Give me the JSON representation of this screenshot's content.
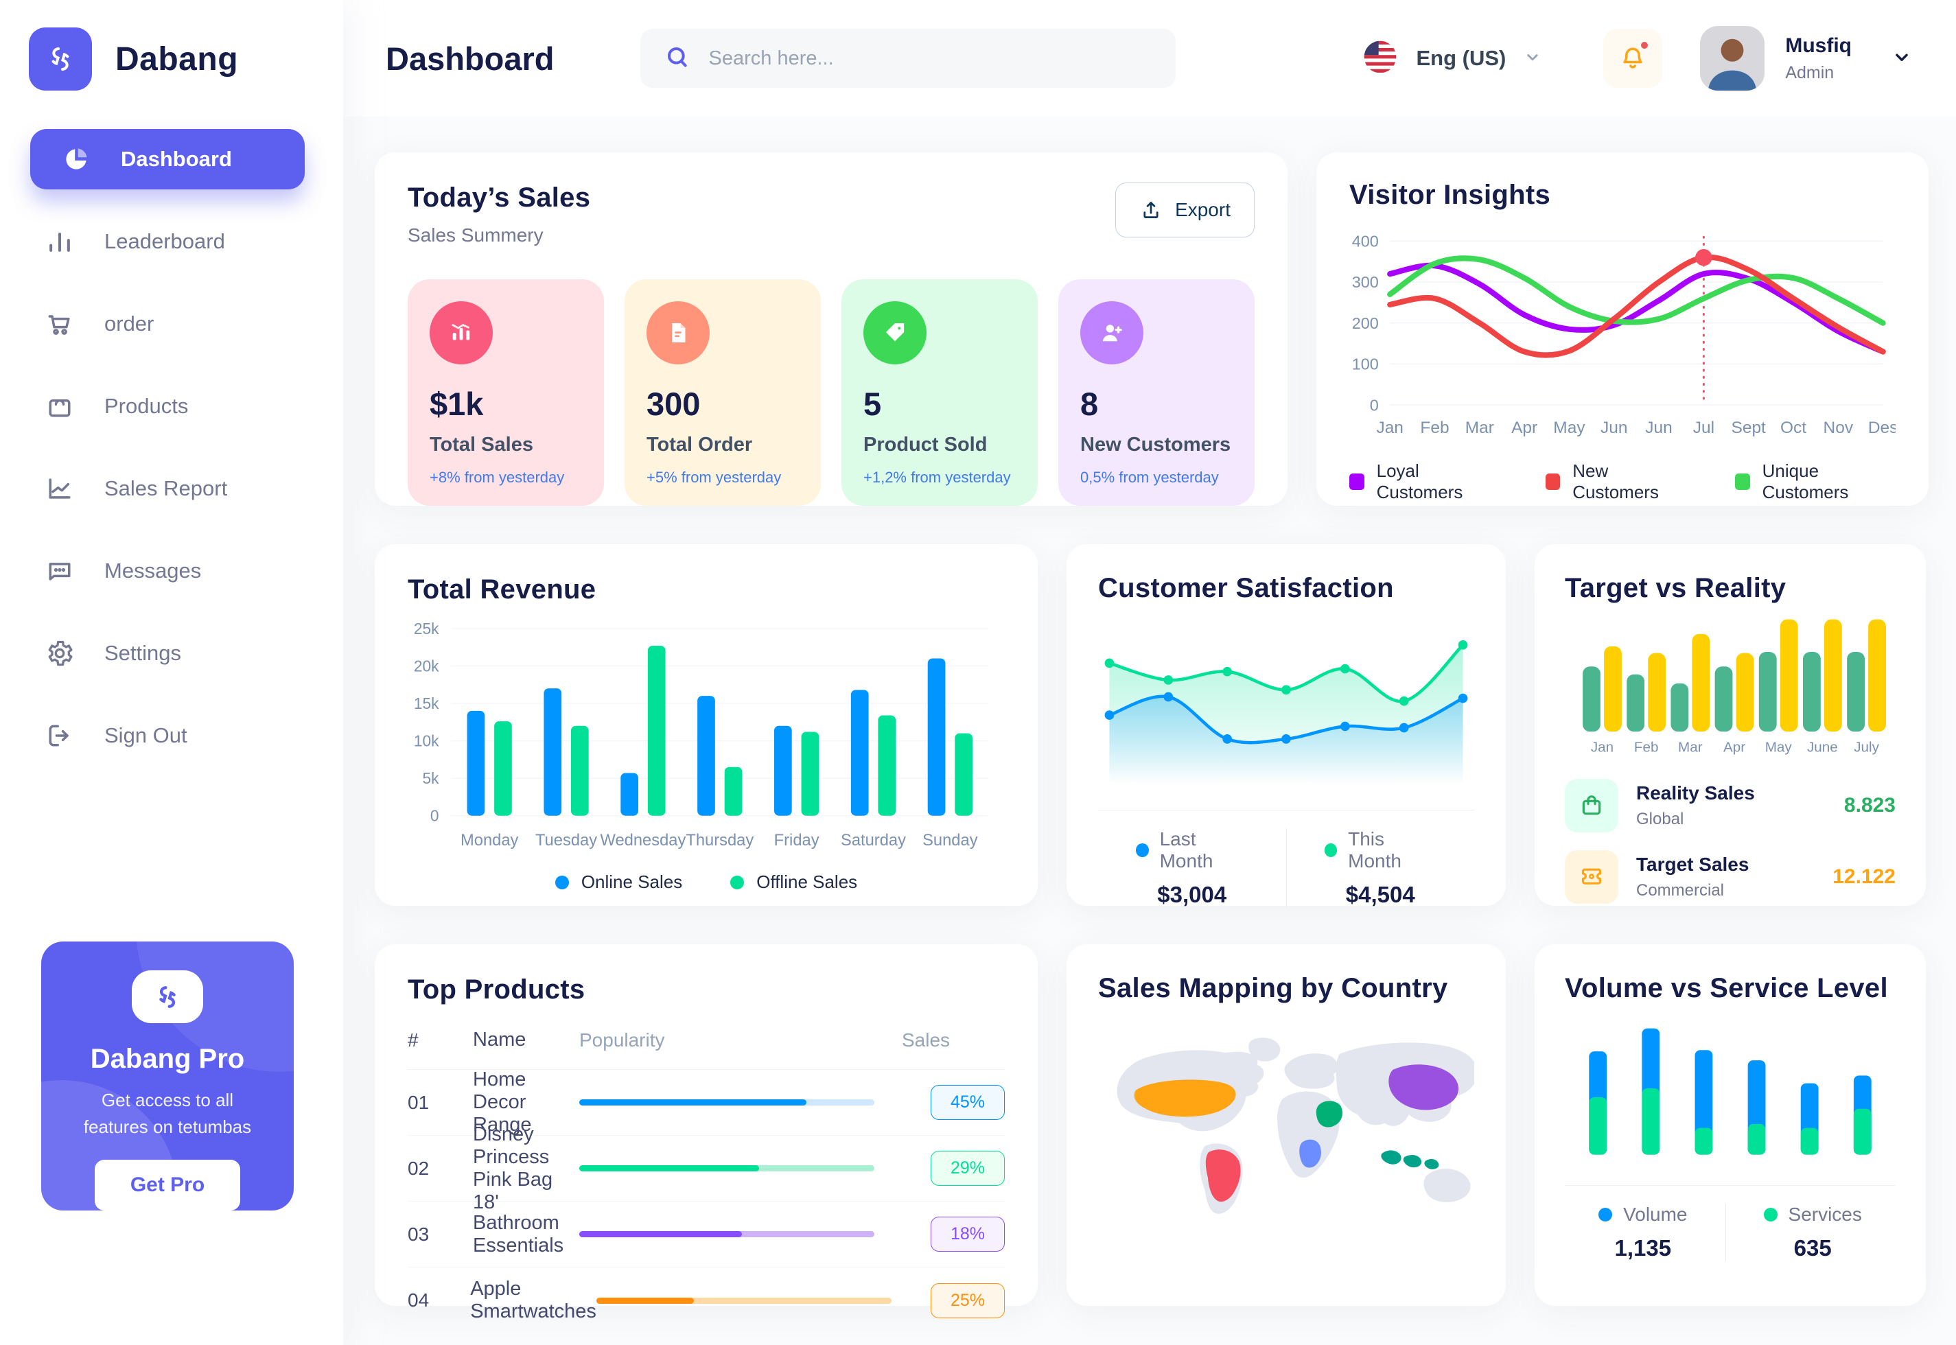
{
  "brand": {
    "name": "Dabang"
  },
  "header": {
    "title": "Dashboard",
    "search_placeholder": "Search here...",
    "language_label": "Eng (US)",
    "user_name": "Musfiq",
    "user_role": "Admin"
  },
  "sidebar": {
    "items": [
      {
        "label": "Dashboard",
        "icon": "pie-chart-icon",
        "active": true
      },
      {
        "label": "Leaderboard",
        "icon": "bar-chart-icon"
      },
      {
        "label": "order",
        "icon": "cart-icon"
      },
      {
        "label": "Products",
        "icon": "bag-icon"
      },
      {
        "label": "Sales Report",
        "icon": "line-chart-icon"
      },
      {
        "label": "Messages",
        "icon": "chat-icon"
      },
      {
        "label": "Settings",
        "icon": "gear-icon"
      },
      {
        "label": "Sign Out",
        "icon": "sign-out-icon"
      }
    ],
    "pro_card": {
      "title": "Dabang Pro",
      "line1": "Get access to all",
      "line2": "features on tetumbas",
      "cta": "Get Pro"
    }
  },
  "today_sales": {
    "title": "Today’s Sales",
    "subtitle": "Sales Summery",
    "export_label": "Export",
    "delta_color": "#4079ED",
    "cards": [
      {
        "value": "$1k",
        "label": "Total Sales",
        "delta": "+8% from yesterday",
        "bg": "#FFE2E5",
        "icon_bg": "#FA5A7D",
        "icon": "sales-chart-icon"
      },
      {
        "value": "300",
        "label": "Total Order",
        "delta": "+5% from yesterday",
        "bg": "#FFF4DE",
        "icon_bg": "#FF947A",
        "icon": "order-file-icon"
      },
      {
        "value": "5",
        "label": "Product Sold",
        "delta": "+1,2% from yesterday",
        "bg": "#DCFCE7",
        "icon_bg": "#3CD856",
        "icon": "tag-icon"
      },
      {
        "value": "8",
        "label": "New Customers",
        "delta": "0,5% from yesterday",
        "bg": "#F3E8FF",
        "icon_bg": "#BF83FF",
        "icon": "user-plus-icon"
      }
    ]
  },
  "chart_data": {
    "visitor_insights": {
      "type": "line",
      "title": "Visitor Insights",
      "x": [
        "Jan",
        "Feb",
        "Mar",
        "Apr",
        "May",
        "Jun",
        "Jun",
        "Jul",
        "Sept",
        "Oct",
        "Nov",
        "Des"
      ],
      "ylim": [
        0,
        400
      ],
      "yticks": [
        0,
        100,
        200,
        300,
        400
      ],
      "grid": true,
      "legend_position": "bottom",
      "series": [
        {
          "name": "Loyal Customers",
          "color": "#A700FF",
          "values": [
            320,
            340,
            295,
            220,
            185,
            195,
            255,
            320,
            308,
            250,
            180,
            130
          ]
        },
        {
          "name": "New Customers",
          "color": "#EF4444",
          "values": [
            245,
            260,
            200,
            130,
            132,
            210,
            300,
            360,
            330,
            260,
            190,
            130
          ]
        },
        {
          "name": "Unique Customers",
          "color": "#3CD856",
          "values": [
            270,
            345,
            355,
            310,
            240,
            205,
            210,
            260,
            305,
            310,
            260,
            200
          ]
        }
      ],
      "highlight": {
        "x": "Jul",
        "x_index": 7,
        "series": "New Customers",
        "value": 360
      }
    },
    "total_revenue": {
      "type": "bar",
      "title": "Total Revenue",
      "categories": [
        "Monday",
        "Tuesday",
        "Wednesday",
        "Thursday",
        "Friday",
        "Saturday",
        "Sunday"
      ],
      "ylim": [
        0,
        25
      ],
      "ytick_labels": [
        "0",
        "5k",
        "10k",
        "15k",
        "20k",
        "25k"
      ],
      "grid": true,
      "legend_position": "bottom",
      "series": [
        {
          "name": "Online Sales",
          "color": "#0095FF",
          "values": [
            14,
            17,
            5.7,
            16,
            12,
            16.8,
            21
          ]
        },
        {
          "name": "Offline Sales",
          "color": "#00E096",
          "values": [
            12.6,
            12,
            22.7,
            6.5,
            11.2,
            13.4,
            11
          ]
        }
      ]
    },
    "customer_satisfaction": {
      "type": "area",
      "title": "Customer Satisfaction",
      "ylim": [
        0,
        100
      ],
      "series": [
        {
          "name": "Last Month",
          "color": "#0095FF",
          "total": "$3,004",
          "values": [
            45,
            58,
            28,
            28,
            37,
            36,
            57
          ]
        },
        {
          "name": "This Month",
          "color": "#00E096",
          "total": "$4,504",
          "values": [
            82,
            70,
            76,
            63,
            78,
            55,
            95
          ]
        }
      ]
    },
    "target_vs_reality": {
      "type": "bar",
      "title": "Target vs Reality",
      "categories": [
        "Jan",
        "Feb",
        "Mar",
        "Apr",
        "May",
        "June",
        "July"
      ],
      "ylim": [
        0,
        100
      ],
      "series": [
        {
          "name": "Reality Sales",
          "color": "#4AB58E",
          "values": [
            58,
            51,
            43,
            58,
            71,
            71,
            71
          ]
        },
        {
          "name": "Target Sales",
          "color": "#FFCF00",
          "values": [
            76,
            70,
            87,
            70,
            100,
            100,
            100
          ]
        }
      ],
      "legend": [
        {
          "name": "Reality Sales",
          "subtitle": "Global",
          "value": "8.823",
          "value_color": "#27AE60",
          "icon_bg": "#E2FFF3",
          "icon": "shopping-bag-icon"
        },
        {
          "name": "Target Sales",
          "subtitle": "Commercial",
          "value": "12.122",
          "value_color": "#FFA412",
          "icon_bg": "#FFF4DE",
          "icon": "ticket-icon"
        }
      ]
    },
    "volume_vs_service": {
      "type": "stacked-bar",
      "title": "Volume vs Service Level",
      "series": [
        {
          "name": "Volume",
          "color": "#0095FF",
          "total": "1,135",
          "values": [
            36,
            47,
            61,
            50,
            35,
            26
          ]
        },
        {
          "name": "Services",
          "color": "#00E096",
          "total": "635",
          "values": [
            45,
            52,
            21,
            24,
            21,
            36
          ]
        }
      ]
    }
  },
  "top_products": {
    "title": "Top Products",
    "columns": [
      "#",
      "Name",
      "Popularity",
      "Sales"
    ],
    "rows": [
      {
        "num": "01",
        "name": "Home Decor Range",
        "popularity": 77,
        "sales": "45%",
        "color": "#0095FF",
        "track": "#CFE8FF",
        "badge_bg": "#F0F9FF"
      },
      {
        "num": "02",
        "name": "Disney Princess Pink Bag 18'",
        "popularity": 61,
        "sales": "29%",
        "color": "#00E096",
        "track": "#A9EFD3",
        "badge_bg": "#EBFFF3"
      },
      {
        "num": "03",
        "name": "Bathroom Essentials",
        "popularity": 55,
        "sales": "18%",
        "color": "#884DFF",
        "track": "#CDB2F7",
        "badge_bg": "#F6F0FF"
      },
      {
        "num": "04",
        "name": "Apple Smartwatches",
        "popularity": 33,
        "sales": "25%",
        "color": "#FF8F0D",
        "track": "#FFD9A6",
        "badge_bg": "#FFF6EA"
      }
    ]
  },
  "sales_map": {
    "title": "Sales Mapping by Country",
    "countries": [
      {
        "name": "United States",
        "color": "#FFA412"
      },
      {
        "name": "Brazil",
        "color": "#F64E60"
      },
      {
        "name": "Saudi Arabia",
        "color": "#00B074"
      },
      {
        "name": "Democratic Republic of Congo",
        "color": "#6B8DFF"
      },
      {
        "name": "China",
        "color": "#9B51E0"
      },
      {
        "name": "Indonesia",
        "color": "#00A389"
      }
    ]
  }
}
